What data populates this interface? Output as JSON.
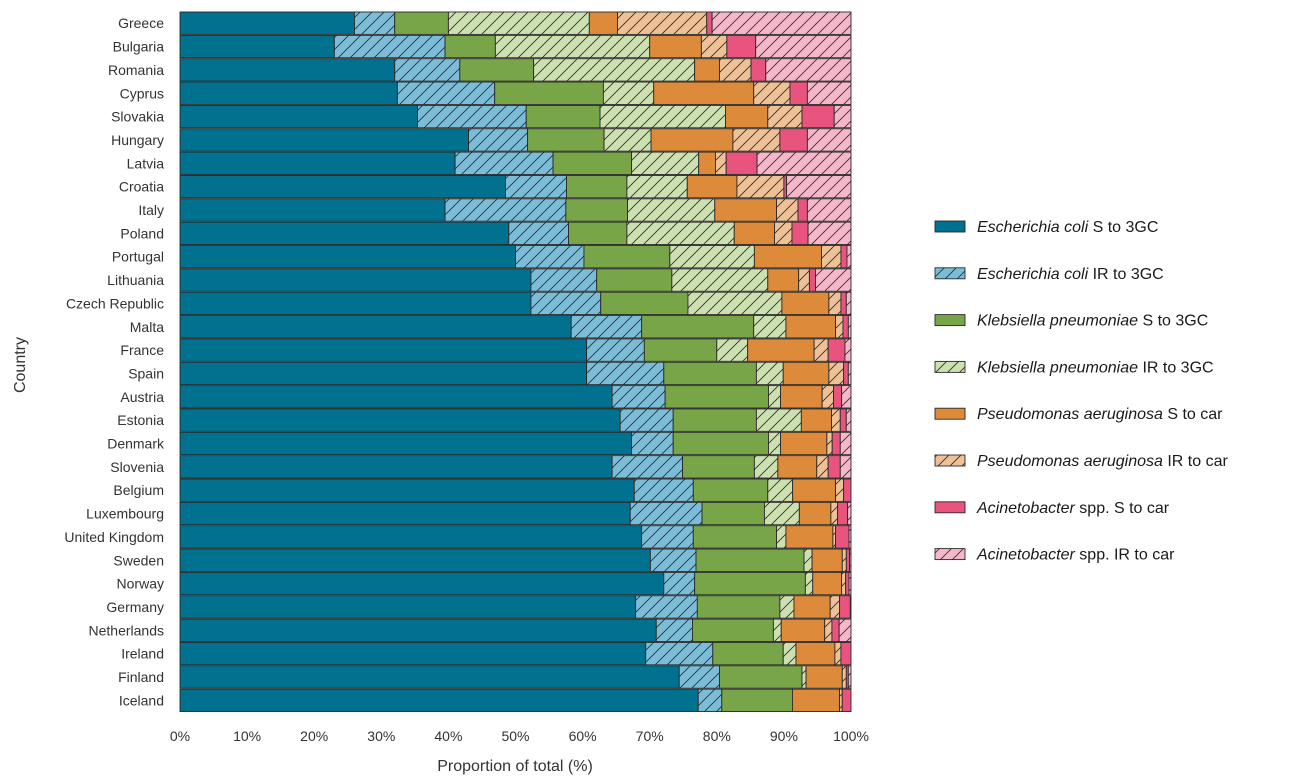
{
  "chart_data": {
    "type": "bar",
    "orientation": "horizontal",
    "stacked": true,
    "normalized": true,
    "xlabel": "Proportion of total (%)",
    "ylabel": "Country",
    "xlim": [
      0,
      100
    ],
    "x_ticks": [
      "0%",
      "10%",
      "20%",
      "30%",
      "40%",
      "50%",
      "60%",
      "70%",
      "80%",
      "90%",
      "100%"
    ],
    "legend_position": "right",
    "categories": [
      "Greece",
      "Bulgaria",
      "Romania",
      "Cyprus",
      "Slovakia",
      "Hungary",
      "Latvia",
      "Croatia",
      "Italy",
      "Poland",
      "Portugal",
      "Lithuania",
      "Czech Republic",
      "Malta",
      "France",
      "Spain",
      "Austria",
      "Estonia",
      "Denmark",
      "Slovenia",
      "Belgium",
      "Luxembourg",
      "United Kingdom",
      "Sweden",
      "Norway",
      "Germany",
      "Netherlands",
      "Ireland",
      "Finland",
      "Iceland"
    ],
    "series": [
      {
        "name": "Escherichia coli S to 3GC",
        "name_italic": "Escherichia coli",
        "name_rest": " S to 3GC",
        "color": "#00718f",
        "hatched": false,
        "values": [
          26,
          23,
          32,
          32.4,
          35.4,
          43,
          41,
          48.5,
          39.5,
          49,
          50,
          52.3,
          52.3,
          58.3,
          60.6,
          60.6,
          64.4,
          65.6,
          67.3,
          64.4,
          67.7,
          67.1,
          68.8,
          70.1,
          72.1,
          67.9,
          72.4,
          69.4,
          74.4,
          77
        ]
      },
      {
        "name": "Escherichia coli IR to 3GC",
        "name_italic": "Escherichia coli",
        "name_rest": " IR to 3GC",
        "color": "#7bbcd7",
        "hatched": true,
        "values": [
          6,
          16.5,
          9.7,
          14.5,
          16.2,
          8.8,
          14.6,
          9.1,
          18,
          8.9,
          10.2,
          9.8,
          10.4,
          10.5,
          8.6,
          11.5,
          7.9,
          7.9,
          6.2,
          10.5,
          8.8,
          10.7,
          7.7,
          6.8,
          4.6,
          9.2,
          5.5,
          10,
          6,
          3.5
        ]
      },
      {
        "name": "Klebsiella pneumoniae S to 3GC",
        "name_italic": "Klebsiella pneumoniae",
        "name_rest": " S to 3GC",
        "color": "#77a548",
        "hatched": false,
        "values": [
          8,
          7.5,
          11,
          16.2,
          11,
          11.4,
          11.7,
          9,
          9.2,
          8.7,
          12.8,
          11.2,
          13,
          16.7,
          10.8,
          13.8,
          15.4,
          12.4,
          14.2,
          10.7,
          11.1,
          9.3,
          12.4,
          16.1,
          16.5,
          12.3,
          12.3,
          10.5,
          12.3,
          10.5
        ]
      },
      {
        "name": "Klebsiella pneumoniae IR to 3GC",
        "name_italic": "Klebsiella pneumoniae",
        "name_rest": " IR to 3GC",
        "color": "#cde0b0",
        "hatched": true,
        "values": [
          21,
          23,
          24,
          7.5,
          18.7,
          7,
          10,
          9,
          13,
          16,
          12.6,
          14.3,
          14,
          4.8,
          4.6,
          4,
          1.8,
          6.7,
          1.8,
          3.5,
          3.7,
          5.2,
          1.4,
          1.2,
          1.1,
          2.1,
          1.2,
          1.9,
          0.6,
          0
        ]
      },
      {
        "name": "Pseudomonas aeruginosa S to car",
        "name_italic": "Pseudomonas aeruginosa",
        "name_rest": " S to car",
        "color": "#dd8a3a",
        "hatched": false,
        "values": [
          4.2,
          7.7,
          3.7,
          14.9,
          6.3,
          12.2,
          2.5,
          7.4,
          9.2,
          6,
          10,
          4.6,
          7,
          7.4,
          9.9,
          6.8,
          6.2,
          4.5,
          6.9,
          5.8,
          6.4,
          4.7,
          7,
          4.5,
          4.3,
          5.4,
          6.6,
          5.8,
          5.4,
          7
        ]
      },
      {
        "name": "Pseudomonas aeruginosa IR to car",
        "name_italic": "Pseudomonas aeruginosa",
        "name_rest": " IR to car",
        "color": "#eec196",
        "hatched": true,
        "values": [
          13.3,
          3.8,
          4.7,
          5.4,
          5.1,
          7,
          1.6,
          7,
          3.2,
          2.6,
          2.9,
          1.6,
          1.8,
          1.1,
          2.1,
          2.2,
          1.7,
          1.3,
          0.8,
          1.7,
          1.2,
          1,
          0.4,
          0.6,
          0.6,
          1.4,
          1.1,
          0.9,
          0.6,
          0.4
        ]
      },
      {
        "name": "Acinetobacter spp. S to car",
        "name_italic": "Acinetobacter",
        "name_rest": " spp. S to car",
        "color": "#e8547e",
        "hatched": false,
        "values": [
          0.8,
          4.3,
          2.2,
          2.6,
          4.8,
          4.1,
          4.6,
          0.4,
          1.4,
          2.4,
          0.9,
          0.9,
          0.8,
          0.8,
          2.5,
          0.7,
          1.2,
          0.9,
          1.2,
          1.8,
          1.1,
          1.5,
          2,
          0.5,
          0.5,
          1.6,
          1.1,
          1.5,
          0.3,
          1.3
        ]
      },
      {
        "name": "Acinetobacter spp. IR to car",
        "name_italic": "Acinetobacter",
        "name_rest": " spp. IR to car",
        "color": "#f5b7c9",
        "hatched": true,
        "values": [
          20.7,
          14.2,
          12.7,
          6.5,
          2.5,
          6.5,
          14,
          9.6,
          6.5,
          6.4,
          0.6,
          5.3,
          0.7,
          0.4,
          0.9,
          0.4,
          1.4,
          0.7,
          1.6,
          1.6,
          0,
          0.5,
          0.3,
          0.2,
          0.3,
          0.1,
          1.8,
          0,
          0.4,
          0
        ]
      }
    ]
  }
}
